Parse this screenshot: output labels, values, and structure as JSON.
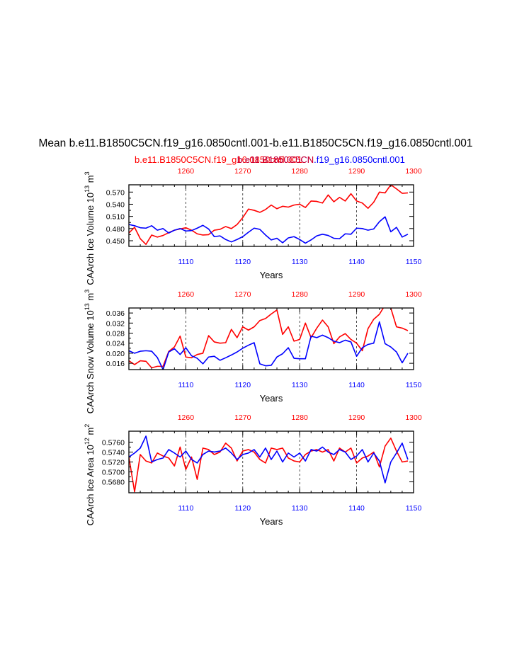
{
  "figure": {
    "title": "Mean b.e11.B1850C5CN.f19_g16.0850cntl.001-b.e11.B1850C5CN.f19_g16.0850cntl.001",
    "legend_red": "b.e11.B1850C5CN.f19_g16.0850cntl.001",
    "legend_blue": "b.e11.B1850C5CN.f19_g16.0850cntl.001",
    "legend_overlap": "b.e11.B1850C5CN",
    "colors": {
      "red": "#ff0000",
      "blue": "#0000ff",
      "axis": "#000000"
    }
  },
  "chart_data": [
    {
      "type": "line",
      "ylabel": "CAArch Ice Volume 10^13 m^3",
      "ylabel_main": "CAArch Ice Volume 10",
      "ylabel_exp": "13",
      "ylabel_unit": " m",
      "ylabel_unit_exp": "3",
      "xlabel": "Years",
      "top_axis": {
        "range": [
          1250,
          1300
        ],
        "ticks": [
          1260,
          1270,
          1280,
          1290,
          1300
        ]
      },
      "bottom_axis": {
        "range": [
          1100,
          1150
        ],
        "ticks": [
          1110,
          1120,
          1130,
          1140,
          1150
        ]
      },
      "ylim": [
        0.436,
        0.588
      ],
      "yticks": [
        0.45,
        0.48,
        0.51,
        0.54,
        0.57
      ],
      "ytick_labels": [
        "0.450",
        "0.480",
        "0.510",
        "0.540",
        "0.570"
      ],
      "gridlines_x": [
        1110,
        1120,
        1130,
        1140
      ],
      "series": [
        {
          "color": "#ff0000",
          "axis": "top",
          "x_start": 1250,
          "values": [
            0.469,
            0.483,
            0.455,
            0.441,
            0.464,
            0.459,
            0.463,
            0.47,
            0.476,
            0.479,
            0.482,
            0.476,
            0.467,
            0.464,
            0.465,
            0.476,
            0.478,
            0.485,
            0.48,
            0.49,
            0.507,
            0.528,
            0.525,
            0.52,
            0.527,
            0.538,
            0.529,
            0.535,
            0.533,
            0.538,
            0.54,
            0.532,
            0.548,
            0.547,
            0.543,
            0.563,
            0.546,
            0.557,
            0.548,
            0.566,
            0.548,
            0.543,
            0.53,
            0.545,
            0.57,
            0.568,
            0.588,
            0.578,
            0.567,
            0.568
          ]
        },
        {
          "color": "#0000ff",
          "axis": "bottom",
          "x_start": 1100,
          "values": [
            0.49,
            0.487,
            0.482,
            0.481,
            0.487,
            0.476,
            0.48,
            0.469,
            0.476,
            0.48,
            0.474,
            0.475,
            0.481,
            0.488,
            0.479,
            0.46,
            0.462,
            0.453,
            0.447,
            0.453,
            0.46,
            0.471,
            0.481,
            0.478,
            0.464,
            0.452,
            0.456,
            0.445,
            0.457,
            0.46,
            0.453,
            0.444,
            0.452,
            0.462,
            0.466,
            0.463,
            0.456,
            0.455,
            0.467,
            0.466,
            0.481,
            0.48,
            0.476,
            0.479,
            0.497,
            0.509,
            0.472,
            0.483,
            0.459,
            0.466
          ]
        }
      ]
    },
    {
      "type": "line",
      "ylabel": "CAArch Snow Volume 10^13 m^3",
      "ylabel_main": "CAArch Snow Volume 10",
      "ylabel_exp": "13",
      "ylabel_unit": " m",
      "ylabel_unit_exp": "3",
      "xlabel": "Years",
      "top_axis": {
        "range": [
          1250,
          1300
        ],
        "ticks": [
          1260,
          1270,
          1280,
          1290,
          1300
        ]
      },
      "bottom_axis": {
        "range": [
          1100,
          1150
        ],
        "ticks": [
          1110,
          1120,
          1130,
          1140,
          1150
        ]
      },
      "ylim": [
        0.0135,
        0.038
      ],
      "yticks": [
        0.016,
        0.02,
        0.024,
        0.028,
        0.032,
        0.036
      ],
      "ytick_labels": [
        "0.016",
        "0.020",
        "0.024",
        "0.028",
        "0.032",
        "0.036"
      ],
      "gridlines_x": [
        1110,
        1120,
        1130,
        1140
      ],
      "series": [
        {
          "color": "#ff0000",
          "axis": "top",
          "x_start": 1250,
          "values": [
            0.017,
            0.0155,
            0.017,
            0.0168,
            0.0142,
            0.0148,
            0.0148,
            0.0207,
            0.0225,
            0.0268,
            0.0185,
            0.0182,
            0.0195,
            0.02,
            0.027,
            0.0245,
            0.024,
            0.0242,
            0.0295,
            0.0262,
            0.0305,
            0.0292,
            0.0305,
            0.033,
            0.0338,
            0.0356,
            0.0372,
            0.0275,
            0.0305,
            0.0248,
            0.0255,
            0.032,
            0.0262,
            0.03,
            0.0332,
            0.0305,
            0.0238,
            0.0265,
            0.0278,
            0.0255,
            0.024,
            0.021,
            0.0298,
            0.0335,
            0.0355,
            0.0392,
            0.038,
            0.0305,
            0.03,
            0.029
          ]
        },
        {
          "color": "#0000ff",
          "axis": "bottom",
          "x_start": 1100,
          "values": [
            0.021,
            0.02,
            0.0208,
            0.021,
            0.0208,
            0.0183,
            0.0135,
            0.0205,
            0.0218,
            0.0195,
            0.0222,
            0.019,
            0.018,
            0.0158,
            0.0185,
            0.0188,
            0.0172,
            0.0182,
            0.0193,
            0.0205,
            0.022,
            0.0232,
            0.0242,
            0.0158,
            0.015,
            0.0152,
            0.0185,
            0.0198,
            0.0222,
            0.018,
            0.0178,
            0.0178,
            0.0268,
            0.0262,
            0.0272,
            0.0262,
            0.0248,
            0.0242,
            0.0252,
            0.0245,
            0.0188,
            0.0222,
            0.0235,
            0.024,
            0.0325,
            0.0238,
            0.0225,
            0.0205,
            0.0162,
            0.02
          ]
        }
      ]
    },
    {
      "type": "line",
      "ylabel": "CAArch Ice Area 10^12 m^2",
      "ylabel_main": "CAArch Ice Area 10",
      "ylabel_exp": "12",
      "ylabel_unit": " m",
      "ylabel_unit_exp": "2",
      "xlabel": "Years",
      "top_axis": {
        "range": [
          1250,
          1300
        ],
        "ticks": [
          1260,
          1270,
          1280,
          1290,
          1300
        ]
      },
      "bottom_axis": {
        "range": [
          1100,
          1150
        ],
        "ticks": [
          1110,
          1120,
          1130,
          1140,
          1150
        ]
      },
      "ylim": [
        0.5658,
        0.5782
      ],
      "yticks": [
        0.568,
        0.57,
        0.572,
        0.574,
        0.576
      ],
      "ytick_labels": [
        "0.5680",
        "0.5700",
        "0.5720",
        "0.5740",
        "0.5760"
      ],
      "gridlines_x": [
        1110,
        1120,
        1130,
        1140
      ],
      "series": [
        {
          "color": "#ff0000",
          "axis": "top",
          "x_start": 1250,
          "values": [
            0.573,
            0.566,
            0.5735,
            0.5722,
            0.5718,
            0.5738,
            0.5732,
            0.5728,
            0.5712,
            0.575,
            0.5705,
            0.573,
            0.5685,
            0.5748,
            0.5745,
            0.5735,
            0.574,
            0.5758,
            0.5748,
            0.5722,
            0.5742,
            0.5745,
            0.574,
            0.5725,
            0.5718,
            0.5748,
            0.5745,
            0.5748,
            0.5728,
            0.5722,
            0.572,
            0.5735,
            0.5742,
            0.5745,
            0.574,
            0.5745,
            0.5722,
            0.5748,
            0.574,
            0.5748,
            0.5718,
            0.5728,
            0.5732,
            0.574,
            0.571,
            0.5752,
            0.5768,
            0.5742,
            0.572,
            0.5722
          ]
        },
        {
          "color": "#0000ff",
          "axis": "bottom",
          "x_start": 1100,
          "values": [
            0.573,
            0.5738,
            0.5748,
            0.5772,
            0.572,
            0.5725,
            0.5728,
            0.5745,
            0.5738,
            0.573,
            0.5742,
            0.5725,
            0.5718,
            0.5735,
            0.5742,
            0.574,
            0.5742,
            0.5748,
            0.5738,
            0.5725,
            0.5735,
            0.5738,
            0.5745,
            0.573,
            0.5748,
            0.5725,
            0.5742,
            0.572,
            0.5738,
            0.573,
            0.5738,
            0.5722,
            0.5745,
            0.5742,
            0.575,
            0.574,
            0.5735,
            0.5745,
            0.574,
            0.5725,
            0.5732,
            0.5745,
            0.572,
            0.5738,
            0.5722,
            0.5678,
            0.572,
            0.5738,
            0.5758,
            0.5725
          ]
        }
      ]
    }
  ]
}
